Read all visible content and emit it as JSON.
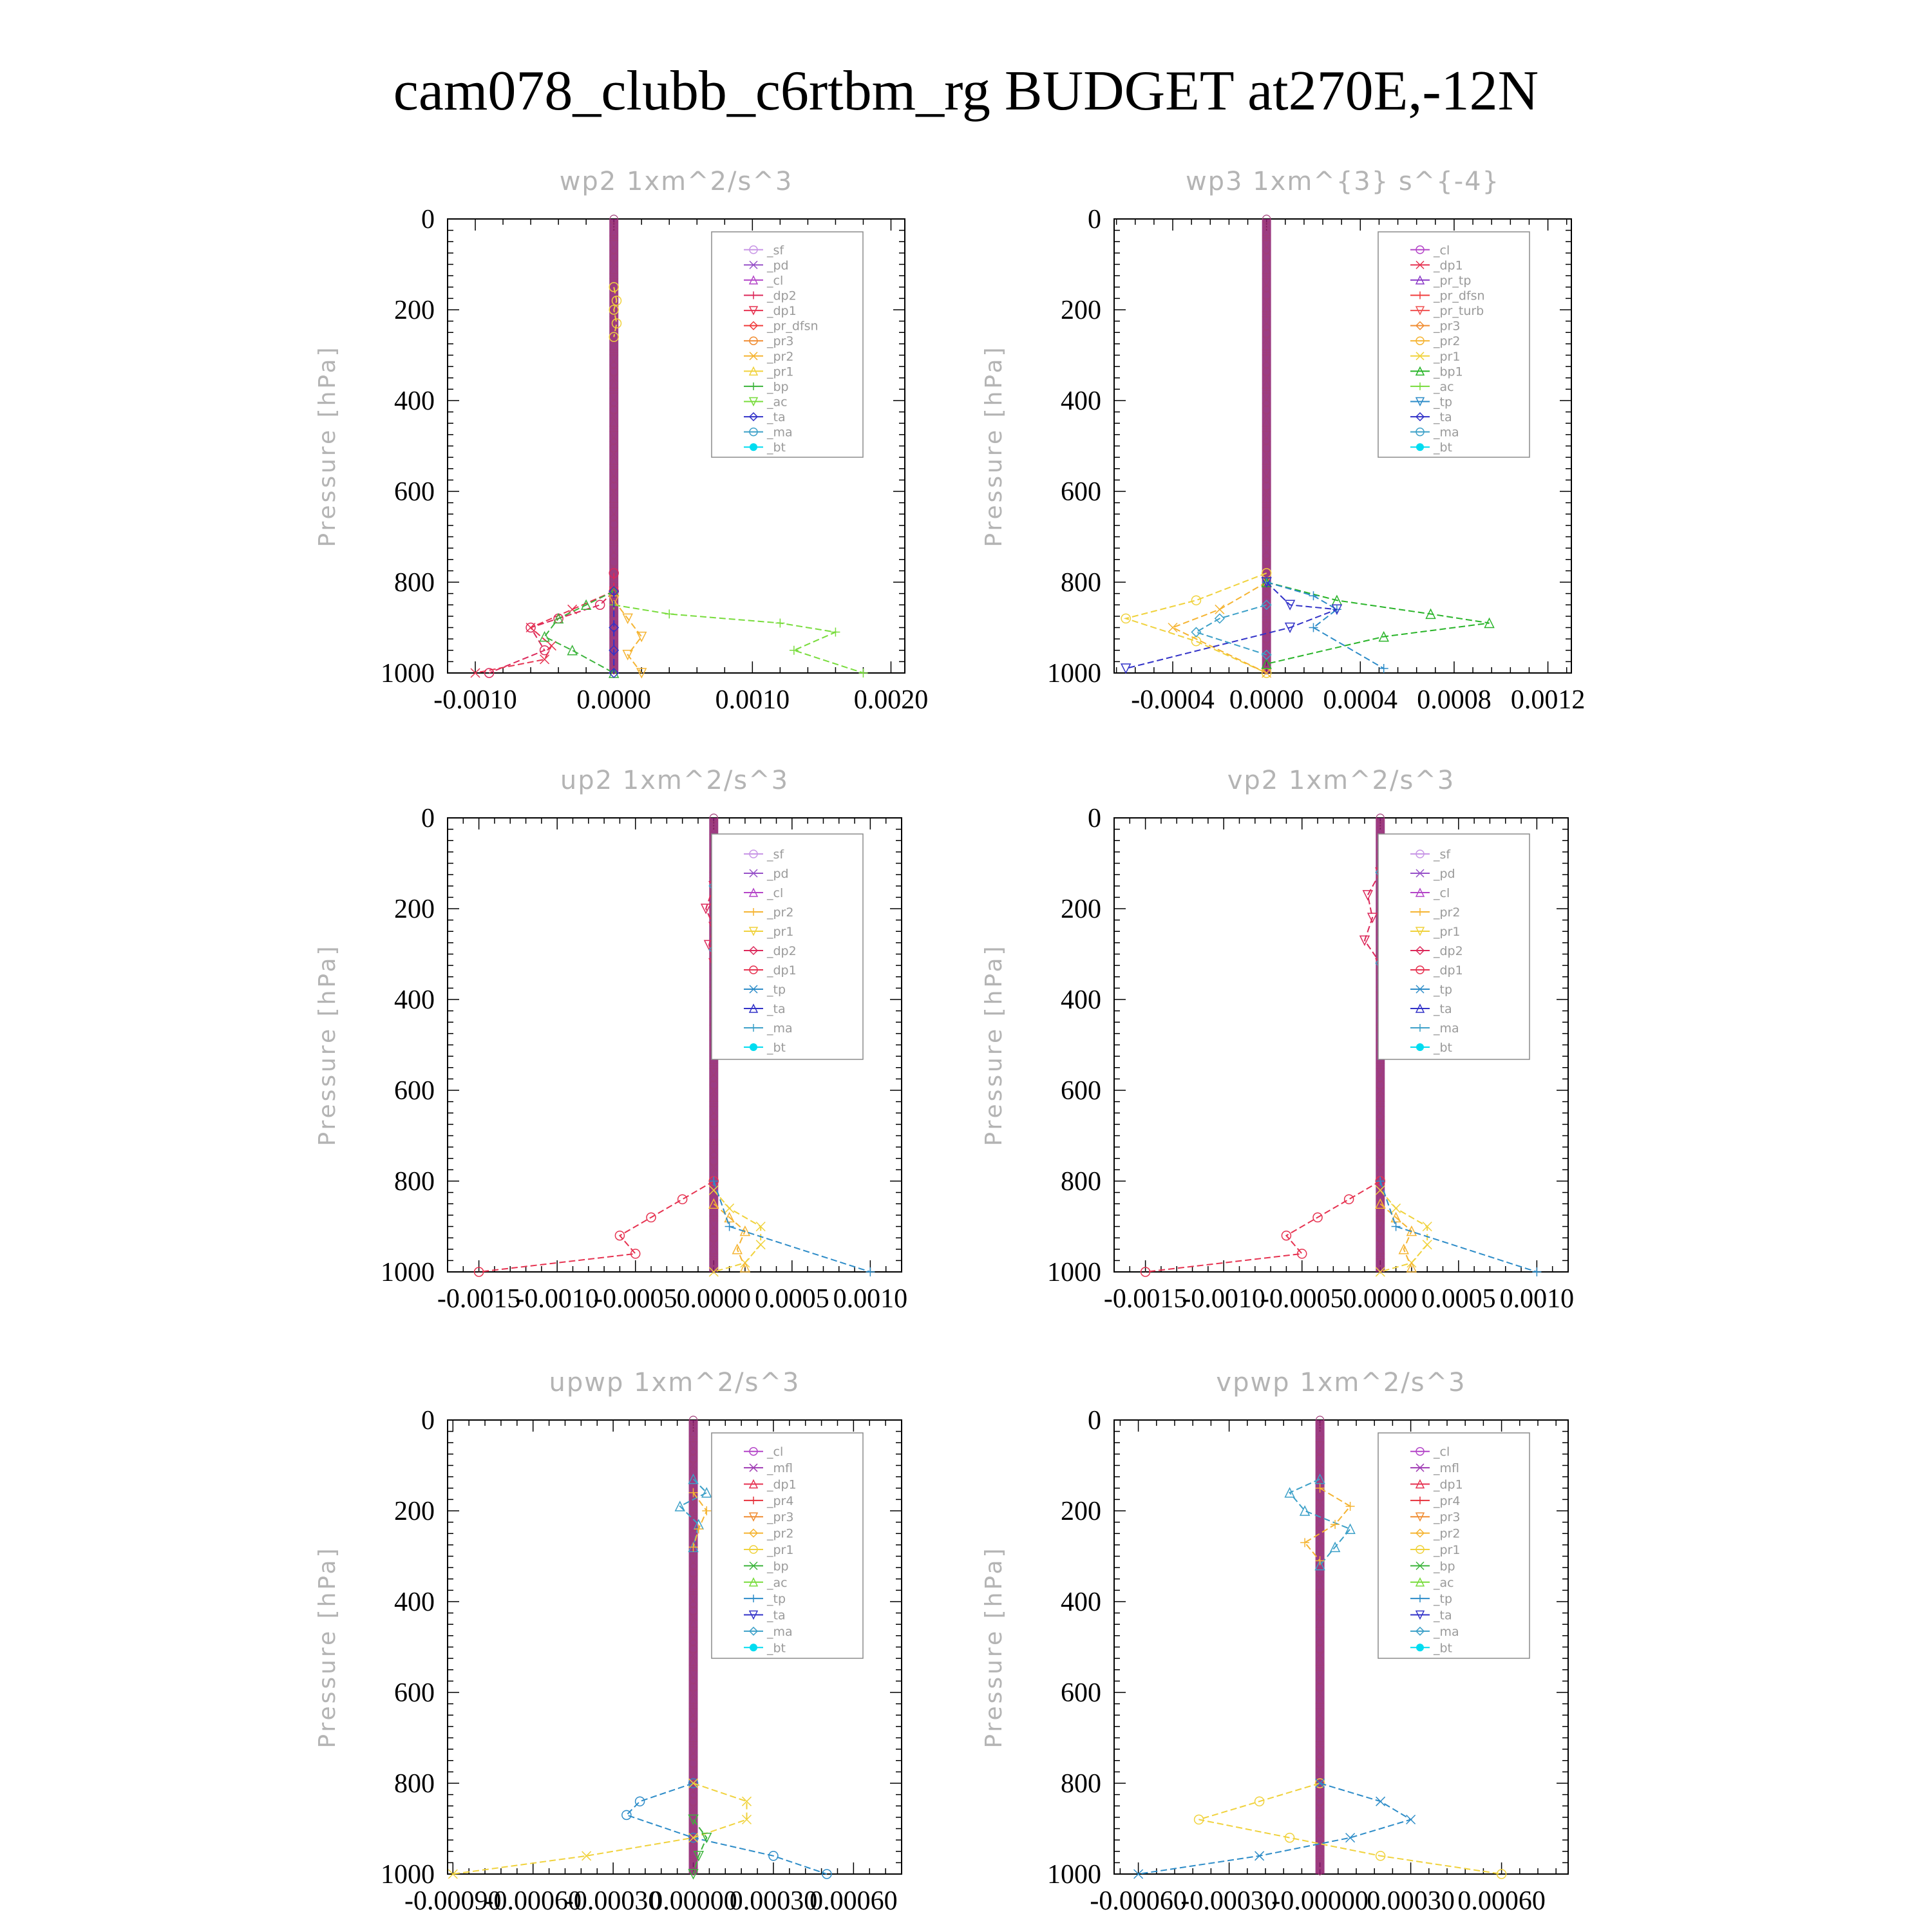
{
  "title": "cam078_clubb_c6rtbm_rg  BUDGET at270E,-12N",
  "colors": {
    "_sf": "#c896e6",
    "_pd": "#9650c8",
    "_cl": "#b446c8",
    "_mfl": "#a03cb4",
    "_dp2": "#dc285a",
    "_dp1": "#e63250",
    "_pr4": "#e6323c",
    "_pr_dfsn": "#f03c3c",
    "_pr_tp": "#8c3cc8",
    "_pr_turb": "#f05050",
    "_pr3": "#f08c32",
    "_pr2": "#f5b432",
    "_pr1": "#f0d23c",
    "_bp": "#3cb43c",
    "_bp1": "#28b428",
    "_ac": "#78dc3c",
    "_tp": "#2d8cc8",
    "_ta": "#3232c8",
    "_ma": "#3ca0c8",
    "_bt": "#00dcf0",
    "axis": "#000000",
    "muted": "#b4b4b4",
    "wall": "#8b1a6e"
  },
  "chart_data": [
    {
      "type": "line",
      "title": "wp2   1xm^2/s^3",
      "ylabel": "Pressure [hPa]",
      "xlim": [
        -0.0012,
        0.0021
      ],
      "ylim": [
        1000,
        0
      ],
      "xticks": [
        -0.001,
        0.0,
        0.001,
        0.002
      ],
      "xtick_labels": [
        "-0.0010",
        "0.0000",
        "0.0010",
        "0.0020"
      ],
      "yticks": [
        0,
        200,
        400,
        600,
        800,
        1000
      ],
      "ytick_labels": [
        "0",
        "200",
        "400",
        "600",
        "800",
        "1000"
      ],
      "legend": [
        "_sf",
        "_pd",
        "_cl",
        "_dp2",
        "_dp1",
        "_pr_dfsn",
        "_pr3",
        "_pr2",
        "_pr1",
        "_bp",
        "_ac",
        "_ta",
        "_ma",
        "_bt"
      ],
      "series": [
        {
          "name": "_dp2",
          "x": [
            0,
            0,
            -0.0001,
            -0.0004,
            -0.0006,
            -0.0005,
            -0.0009
          ],
          "y": [
            780,
            820,
            850,
            880,
            900,
            950,
            1000
          ]
        },
        {
          "name": "_dp1",
          "x": [
            0,
            -0.0003,
            -0.0006,
            -0.00045,
            -0.0005,
            -0.001
          ],
          "y": [
            820,
            860,
            900,
            940,
            970,
            1000
          ]
        },
        {
          "name": "_bp",
          "x": [
            0,
            -0.0002,
            -0.0004,
            -0.0005,
            -0.0003,
            0
          ],
          "y": [
            820,
            850,
            880,
            920,
            950,
            1000
          ]
        },
        {
          "name": "_ac",
          "x": [
            0,
            0.0004,
            0.0012,
            0.0016,
            0.0013,
            0.0018
          ],
          "y": [
            850,
            870,
            890,
            910,
            950,
            1000
          ]
        },
        {
          "name": "_pr2",
          "x": [
            0,
            0.0001,
            0.0002,
            0.0001,
            0.0002
          ],
          "y": [
            840,
            880,
            920,
            960,
            1000
          ]
        },
        {
          "name": "_ta",
          "x": [
            0,
            0,
            0,
            0
          ],
          "y": [
            820,
            900,
            950,
            1000
          ]
        },
        {
          "name": "_pr1",
          "x": [
            0,
            2e-05,
            0,
            2e-05,
            0
          ],
          "y": [
            150,
            180,
            200,
            230,
            260
          ]
        }
      ]
    },
    {
      "type": "line",
      "title": "wp3   1xm^{3} s^{-4}",
      "ylabel": "Pressure [hPa]",
      "xlim": [
        -0.00065,
        0.0013
      ],
      "ylim": [
        1000,
        0
      ],
      "xticks": [
        -0.0004,
        0.0,
        0.0004,
        0.0008,
        0.0012
      ],
      "xtick_labels": [
        "-0.0004",
        "0.0000",
        "0.0004",
        "0.0008",
        "0.0012"
      ],
      "yticks": [
        0,
        200,
        400,
        600,
        800,
        1000
      ],
      "ytick_labels": [
        "0",
        "200",
        "400",
        "600",
        "800",
        "1000"
      ],
      "legend": [
        "_cl",
        "_dp1",
        "_pr_tp",
        "_pr_dfsn",
        "_pr_turb",
        "_pr3",
        "_pr2",
        "_pr1",
        "_bp1",
        "_ac",
        "_tp",
        "_ta",
        "_ma",
        "_bt"
      ],
      "series": [
        {
          "name": "_pr1",
          "x": [
            0,
            -0.0003,
            -0.0006,
            -0.0003,
            0
          ],
          "y": [
            780,
            840,
            880,
            930,
            1000
          ]
        },
        {
          "name": "_pr2",
          "x": [
            0,
            -0.0002,
            -0.0004,
            0
          ],
          "y": [
            800,
            860,
            900,
            1000
          ]
        },
        {
          "name": "_bp1",
          "x": [
            0,
            0.0003,
            0.0007,
            0.00095,
            0.0005,
            0
          ],
          "y": [
            800,
            840,
            870,
            890,
            920,
            980
          ]
        },
        {
          "name": "_tp",
          "x": [
            0,
            0.0002,
            0.0003,
            0.0002,
            0.0005
          ],
          "y": [
            800,
            830,
            860,
            900,
            990
          ]
        },
        {
          "name": "_ta",
          "x": [
            0,
            0.0001,
            0.0003,
            0.0001,
            -0.0006
          ],
          "y": [
            800,
            850,
            860,
            900,
            990
          ]
        },
        {
          "name": "_ma",
          "x": [
            0,
            -0.0002,
            -0.0003,
            0
          ],
          "y": [
            850,
            880,
            910,
            960
          ]
        }
      ]
    },
    {
      "type": "line",
      "title": "up2   1xm^2/s^3",
      "ylabel": "Pressure [hPa]",
      "xlim": [
        -0.0017,
        0.0012
      ],
      "ylim": [
        1000,
        0
      ],
      "xticks": [
        -0.0015,
        -0.001,
        -0.0005,
        0.0,
        0.0005,
        0.001
      ],
      "xtick_labels": [
        "-0.0015",
        "-0.0010",
        "-0.0005",
        "0.0000",
        "0.0005",
        "0.0010"
      ],
      "yticks": [
        0,
        200,
        400,
        600,
        800,
        1000
      ],
      "ytick_labels": [
        "0",
        "200",
        "400",
        "600",
        "800",
        "1000"
      ],
      "legend": [
        "_sf",
        "_pd",
        "_cl",
        "_pr2",
        "_pr1",
        "_dp2",
        "_dp1",
        "_tp",
        "_ta",
        "_ma",
        "_bt"
      ],
      "series": [
        {
          "name": "_dp1",
          "x": [
            0,
            -0.0002,
            -0.0004,
            -0.0006,
            -0.0005,
            -0.0015
          ],
          "y": [
            800,
            840,
            880,
            920,
            960,
            1000
          ]
        },
        {
          "name": "_pr1",
          "x": [
            0,
            0.0001,
            0.0003,
            0.0003,
            0.0002,
            0
          ],
          "y": [
            820,
            860,
            900,
            940,
            980,
            1000
          ]
        },
        {
          "name": "_pr2",
          "x": [
            0,
            0.0001,
            0.0002,
            0.00015,
            0.0002
          ],
          "y": [
            850,
            880,
            910,
            950,
            990
          ]
        },
        {
          "name": "_tp",
          "x": [
            0,
            0.0001,
            0.001
          ],
          "y": [
            800,
            900,
            1000
          ]
        },
        {
          "name": "_dp2",
          "x": [
            0,
            -5e-05,
            0,
            -3e-05,
            0
          ],
          "y": [
            150,
            200,
            240,
            280,
            320
          ]
        },
        {
          "name": "_ma",
          "x": [
            0,
            8e-05,
            0.00012,
            8e-05,
            0
          ],
          "y": [
            150,
            180,
            210,
            250,
            290
          ]
        }
      ]
    },
    {
      "type": "line",
      "title": "vp2   1xm^2/s^3",
      "ylabel": "Pressure [hPa]",
      "xlim": [
        -0.0017,
        0.0012
      ],
      "ylim": [
        1000,
        0
      ],
      "xticks": [
        -0.0015,
        -0.001,
        -0.0005,
        0.0,
        0.0005,
        0.001
      ],
      "xtick_labels": [
        "-0.0015",
        "-0.0010",
        "-0.0005",
        "0.0000",
        "0.0005",
        "0.0010"
      ],
      "yticks": [
        0,
        200,
        400,
        600,
        800,
        1000
      ],
      "ytick_labels": [
        "0",
        "200",
        "400",
        "600",
        "800",
        "1000"
      ],
      "legend": [
        "_sf",
        "_pd",
        "_cl",
        "_pr2",
        "_pr1",
        "_dp2",
        "_dp1",
        "_tp",
        "_ta",
        "_ma",
        "_bt"
      ],
      "series": [
        {
          "name": "_dp1",
          "x": [
            0,
            -0.0002,
            -0.0004,
            -0.0006,
            -0.0005,
            -0.0015
          ],
          "y": [
            800,
            840,
            880,
            920,
            960,
            1000
          ]
        },
        {
          "name": "_pr1",
          "x": [
            0,
            0.0001,
            0.0003,
            0.0003,
            0.0002,
            0
          ],
          "y": [
            820,
            860,
            900,
            940,
            980,
            1000
          ]
        },
        {
          "name": "_pr2",
          "x": [
            0,
            0.0001,
            0.0002,
            0.00015,
            0.0002
          ],
          "y": [
            850,
            880,
            910,
            950,
            990
          ]
        },
        {
          "name": "_tp",
          "x": [
            0,
            0.0001,
            0.001
          ],
          "y": [
            800,
            900,
            1000
          ]
        },
        {
          "name": "_dp2",
          "x": [
            0,
            -8e-05,
            -5e-05,
            -0.0001,
            0
          ],
          "y": [
            120,
            170,
            220,
            270,
            320
          ]
        },
        {
          "name": "_ma",
          "x": [
            0,
            0.00015,
            0.0002,
            0.0001,
            0.00012,
            0
          ],
          "y": [
            120,
            160,
            200,
            240,
            280,
            320
          ]
        }
      ]
    },
    {
      "type": "line",
      "title": "upwp   1xm^2/s^3",
      "ylabel": "Pressure [hPa]",
      "xlim": [
        -0.00092,
        0.00078
      ],
      "ylim": [
        1000,
        0
      ],
      "xticks": [
        -0.0009,
        -0.0006,
        -0.0003,
        0.0,
        0.0003,
        0.0006
      ],
      "xtick_labels": [
        "-0.00090",
        "-0.00060",
        "-0.00030",
        "0.00000",
        "0.00030",
        "0.00060"
      ],
      "yticks": [
        0,
        200,
        400,
        600,
        800,
        1000
      ],
      "ytick_labels": [
        "0",
        "200",
        "400",
        "600",
        "800",
        "1000"
      ],
      "legend": [
        "_cl",
        "_mfl",
        "_dp1",
        "_pr4",
        "_pr3",
        "_pr2",
        "_pr1",
        "_bp",
        "_ac",
        "_tp",
        "_ta",
        "_ma",
        "_bt"
      ],
      "series": [
        {
          "name": "_tp",
          "x": [
            0,
            -0.0002,
            -0.00025,
            0,
            0.0003,
            0.0005
          ],
          "y": [
            800,
            840,
            870,
            920,
            960,
            1000
          ]
        },
        {
          "name": "_pr1",
          "x": [
            0,
            0.0002,
            0.0002,
            0,
            -0.0004,
            -0.0009
          ],
          "y": [
            800,
            840,
            880,
            920,
            960,
            1000
          ]
        },
        {
          "name": "_ma",
          "x": [
            0,
            5e-05,
            -5e-05,
            2e-05,
            0
          ],
          "y": [
            130,
            160,
            190,
            230,
            280
          ]
        },
        {
          "name": "_pr2",
          "x": [
            0,
            5e-05,
            2e-05,
            0
          ],
          "y": [
            160,
            200,
            240,
            280
          ]
        },
        {
          "name": "_bp",
          "x": [
            0,
            5e-05,
            2e-05,
            0
          ],
          "y": [
            880,
            920,
            960,
            1000
          ]
        }
      ]
    },
    {
      "type": "line",
      "title": "vpwp   1xm^2/s^3",
      "ylabel": "Pressure [hPa]",
      "xlim": [
        -0.00068,
        0.00082
      ],
      "ylim": [
        1000,
        0
      ],
      "xticks": [
        -0.0006,
        -0.0003,
        0.0,
        0.0003,
        0.0006
      ],
      "xtick_labels": [
        "-0.00060",
        "-0.00030",
        "-0.00000",
        "0.00030",
        "0.00060"
      ],
      "yticks": [
        0,
        200,
        400,
        600,
        800,
        1000
      ],
      "ytick_labels": [
        "0",
        "200",
        "400",
        "600",
        "800",
        "1000"
      ],
      "legend": [
        "_cl",
        "_mfl",
        "_dp1",
        "_pr4",
        "_pr3",
        "_pr2",
        "_pr1",
        "_bp",
        "_ac",
        "_tp",
        "_ta",
        "_ma",
        "_bt"
      ],
      "series": [
        {
          "name": "_pr1",
          "x": [
            0,
            -0.0002,
            -0.0004,
            -0.0001,
            0.0002,
            0.0006
          ],
          "y": [
            800,
            840,
            880,
            920,
            960,
            1000
          ]
        },
        {
          "name": "_tp",
          "x": [
            0,
            0.0002,
            0.0003,
            0.0001,
            -0.0002,
            -0.0006
          ],
          "y": [
            800,
            840,
            880,
            920,
            960,
            1000
          ]
        },
        {
          "name": "_ma",
          "x": [
            0,
            -0.0001,
            -5e-05,
            0.0001,
            5e-05,
            0
          ],
          "y": [
            130,
            160,
            200,
            240,
            280,
            320
          ]
        },
        {
          "name": "_pr2",
          "x": [
            0,
            0.0001,
            5e-05,
            -5e-05,
            0
          ],
          "y": [
            150,
            190,
            230,
            270,
            310
          ]
        }
      ]
    }
  ]
}
